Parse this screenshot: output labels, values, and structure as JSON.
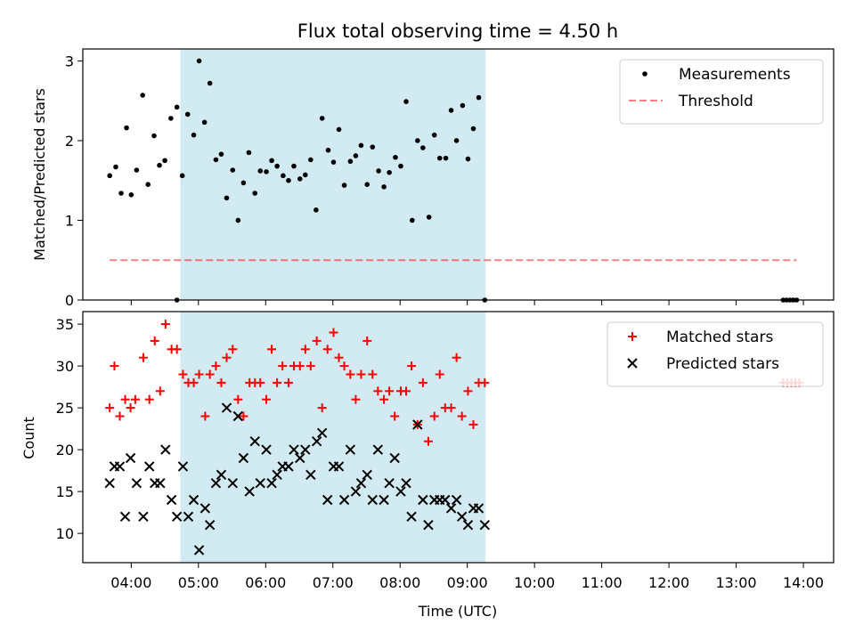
{
  "chart_data": [
    {
      "type": "scatter",
      "title": "Flux total observing time = 4.50 h",
      "ylabel": "Matched/Predicted stars",
      "xlabel": "",
      "ylim": [
        0,
        3.15
      ],
      "xlim": [
        3.28,
        14.45
      ],
      "yticks": [
        0,
        1,
        2,
        3
      ],
      "shaded_span": [
        4.73,
        9.27
      ],
      "shaded_color": "#add8e6",
      "legend_position": "top-right",
      "series": [
        {
          "name": "Measurements",
          "color": "#000000",
          "marker": "dot",
          "x": [
            3.68,
            3.77,
            3.85,
            3.93,
            4.0,
            4.08,
            4.17,
            4.25,
            4.34,
            4.42,
            4.5,
            4.59,
            4.68,
            4.76,
            4.84,
            4.93,
            5.01,
            5.09,
            5.17,
            5.26,
            5.34,
            5.42,
            5.51,
            5.59,
            5.67,
            5.75,
            5.84,
            5.92,
            6.01,
            6.09,
            6.17,
            6.26,
            6.34,
            6.42,
            6.51,
            6.59,
            6.67,
            6.75,
            6.84,
            6.93,
            7.01,
            7.09,
            7.17,
            7.26,
            7.34,
            7.42,
            7.51,
            7.59,
            7.68,
            7.76,
            7.84,
            7.93,
            8.01,
            8.09,
            8.18,
            8.26,
            8.34,
            8.43,
            8.51,
            8.59,
            8.68,
            8.76,
            8.84,
            8.93,
            9.01,
            9.09,
            9.17,
            9.26,
            4.68,
            13.7,
            13.75,
            13.8,
            13.85,
            13.9
          ],
          "y": [
            1.56,
            1.67,
            1.34,
            2.16,
            1.32,
            1.63,
            2.57,
            1.45,
            2.06,
            1.69,
            1.75,
            2.28,
            2.42,
            1.56,
            2.33,
            2.07,
            3.0,
            2.23,
            2.72,
            1.76,
            1.83,
            1.28,
            1.63,
            1.0,
            1.47,
            1.85,
            1.34,
            1.62,
            1.61,
            1.75,
            1.68,
            1.56,
            1.5,
            1.68,
            1.52,
            1.57,
            1.76,
            1.13,
            2.28,
            1.88,
            1.73,
            2.14,
            1.44,
            1.74,
            1.81,
            1.94,
            1.45,
            1.92,
            1.62,
            1.42,
            1.6,
            1.79,
            1.68,
            2.49,
            1.0,
            2.0,
            1.91,
            1.04,
            2.07,
            1.78,
            1.78,
            2.38,
            2.0,
            2.44,
            1.77,
            2.15,
            2.54,
            0.0,
            0.0,
            0.0,
            0.0,
            0.0,
            0.0,
            0.0
          ]
        },
        {
          "name": "Threshold",
          "color": "#ff0000",
          "opacity": 0.5,
          "style": "dashed",
          "x": [
            3.68,
            13.9
          ],
          "y": [
            0.5,
            0.5
          ]
        }
      ]
    },
    {
      "type": "scatter",
      "title": "",
      "ylabel": "Count",
      "xlabel": "Time (UTC)",
      "ylim": [
        6.5,
        36.5
      ],
      "xlim": [
        3.28,
        14.45
      ],
      "yticks": [
        10,
        15,
        20,
        25,
        30,
        35
      ],
      "xticks": [
        4,
        5,
        6,
        7,
        8,
        9,
        10,
        11,
        12,
        13,
        14
      ],
      "xticklabels": [
        "04:00",
        "05:00",
        "06:00",
        "07:00",
        "08:00",
        "09:00",
        "10:00",
        "11:00",
        "12:00",
        "13:00",
        "14:00"
      ],
      "shaded_span": [
        4.73,
        9.27
      ],
      "shaded_color": "#add8e6",
      "legend_position": "top-right",
      "series": [
        {
          "name": "Matched stars",
          "color": "#ff0000",
          "marker": "plus",
          "x": [
            3.68,
            3.75,
            3.83,
            3.91,
            3.99,
            4.06,
            4.18,
            4.27,
            4.35,
            4.43,
            4.51,
            4.6,
            4.68,
            4.77,
            4.85,
            4.93,
            5.01,
            5.1,
            5.17,
            5.26,
            5.34,
            5.42,
            5.51,
            5.59,
            5.67,
            5.76,
            5.84,
            5.92,
            6.01,
            6.09,
            6.17,
            6.25,
            6.34,
            6.42,
            6.51,
            6.59,
            6.67,
            6.76,
            6.84,
            6.92,
            7.01,
            7.09,
            7.17,
            7.26,
            7.34,
            7.42,
            7.51,
            7.59,
            7.67,
            7.76,
            7.84,
            7.92,
            8.01,
            8.09,
            8.17,
            8.26,
            8.34,
            8.42,
            8.51,
            8.59,
            8.67,
            8.76,
            8.84,
            8.92,
            9.01,
            9.09,
            9.17,
            9.26,
            13.7,
            13.76,
            13.82,
            13.88,
            13.94
          ],
          "y": [
            25,
            30,
            24,
            26,
            25,
            26,
            31,
            26,
            33,
            27,
            35,
            32,
            32,
            29,
            28,
            28,
            29,
            24,
            29,
            30,
            28,
            31,
            32,
            26,
            24,
            28,
            28,
            28,
            26,
            32,
            28,
            30,
            28,
            30,
            30,
            32,
            30,
            33,
            25,
            32,
            34,
            31,
            30,
            29,
            26,
            29,
            33,
            29,
            27,
            26,
            27,
            24,
            27,
            27,
            30,
            23,
            28,
            21,
            24,
            29,
            25,
            25,
            31,
            24,
            27,
            23,
            28,
            28,
            28,
            28,
            28,
            28,
            28
          ]
        },
        {
          "name": "Predicted stars",
          "color": "#000000",
          "marker": "x",
          "x": [
            3.68,
            3.75,
            3.83,
            3.91,
            3.99,
            4.08,
            4.18,
            4.27,
            4.35,
            4.43,
            4.51,
            4.6,
            4.68,
            4.77,
            4.85,
            4.93,
            5.01,
            5.1,
            5.17,
            5.26,
            5.34,
            5.42,
            5.51,
            5.59,
            5.67,
            5.76,
            5.84,
            5.92,
            6.01,
            6.09,
            6.17,
            6.25,
            6.34,
            6.42,
            6.51,
            6.59,
            6.67,
            6.76,
            6.84,
            6.92,
            7.01,
            7.09,
            7.17,
            7.26,
            7.34,
            7.42,
            7.51,
            7.59,
            7.67,
            7.76,
            7.84,
            7.92,
            8.01,
            8.09,
            8.17,
            8.26,
            8.34,
            8.42,
            8.51,
            8.59,
            8.67,
            8.76,
            8.84,
            8.92,
            9.01,
            9.09,
            9.17,
            9.26
          ],
          "y": [
            16,
            18,
            18,
            12,
            19,
            16,
            12,
            18,
            16,
            16,
            20,
            14,
            12,
            18,
            12,
            14,
            8,
            13,
            11,
            16,
            17,
            25,
            16,
            24,
            19,
            15,
            21,
            16,
            20,
            16,
            17,
            18,
            18,
            20,
            19,
            20,
            17,
            21,
            22,
            14,
            18,
            18,
            14,
            20,
            15,
            16,
            17,
            14,
            20,
            14,
            16,
            19,
            15,
            16,
            12,
            23,
            14,
            11,
            14,
            14,
            14,
            13,
            14,
            12,
            11,
            13,
            13,
            11
          ]
        }
      ]
    }
  ]
}
